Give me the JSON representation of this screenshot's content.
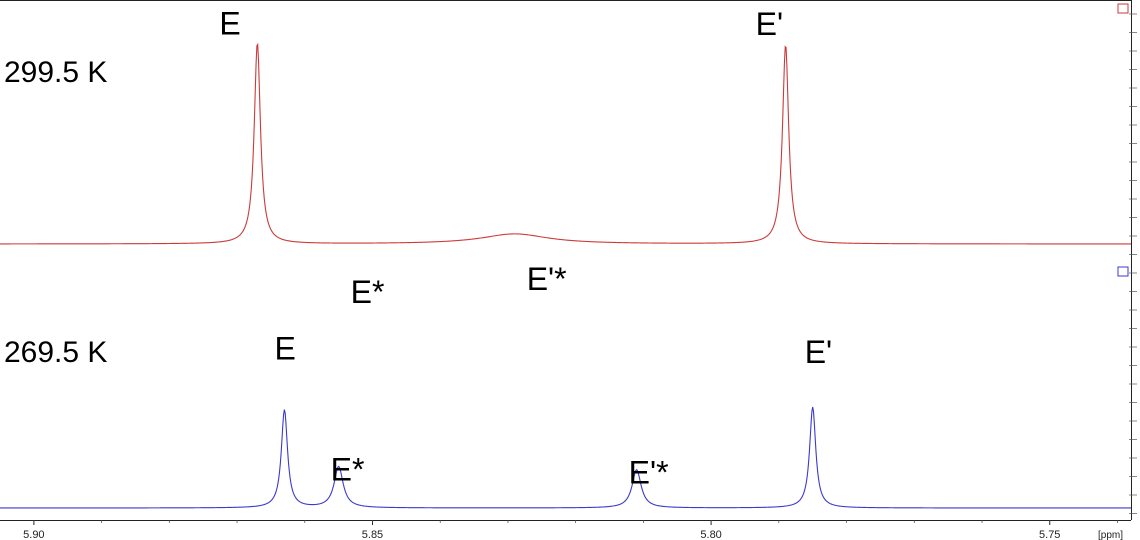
{
  "chart_data": {
    "type": "line",
    "x_unit": "[ppm]",
    "xlim": [
      5.905,
      5.738
    ],
    "x_reversed": true,
    "xticks": [
      {
        "value": 5.9,
        "label": "5.90"
      },
      {
        "value": 5.85,
        "label": "5.85"
      },
      {
        "value": 5.8,
        "label": "5.80"
      },
      {
        "value": 5.75,
        "label": "5.75"
      }
    ],
    "grid": false,
    "series": [
      {
        "name": "299.5 K",
        "color": "#cc3a3a",
        "baseline": 0.0,
        "peaks": [
          {
            "label": "E",
            "x": 5.867,
            "height": 1.0,
            "width": 0.0011
          },
          {
            "label": "E'",
            "x": 5.789,
            "height": 0.99,
            "width": 0.0011
          },
          {
            "label": "E*",
            "x": 5.855,
            "height": 0.0,
            "width": 0.006
          },
          {
            "label": "E'*",
            "x": 5.829,
            "height": 0.05,
            "width": 0.012
          }
        ]
      },
      {
        "name": "269.5 K",
        "color": "#3a3ad0",
        "baseline": 0.0,
        "peaks": [
          {
            "label": "E",
            "x": 5.863,
            "height": 1.0,
            "width": 0.0011
          },
          {
            "label": "E*",
            "x": 5.855,
            "height": 0.42,
            "width": 0.0016
          },
          {
            "label": "E'*",
            "x": 5.811,
            "height": 0.39,
            "width": 0.0016
          },
          {
            "label": "E'",
            "x": 5.785,
            "height": 1.03,
            "width": 0.0011
          }
        ]
      }
    ]
  }
}
